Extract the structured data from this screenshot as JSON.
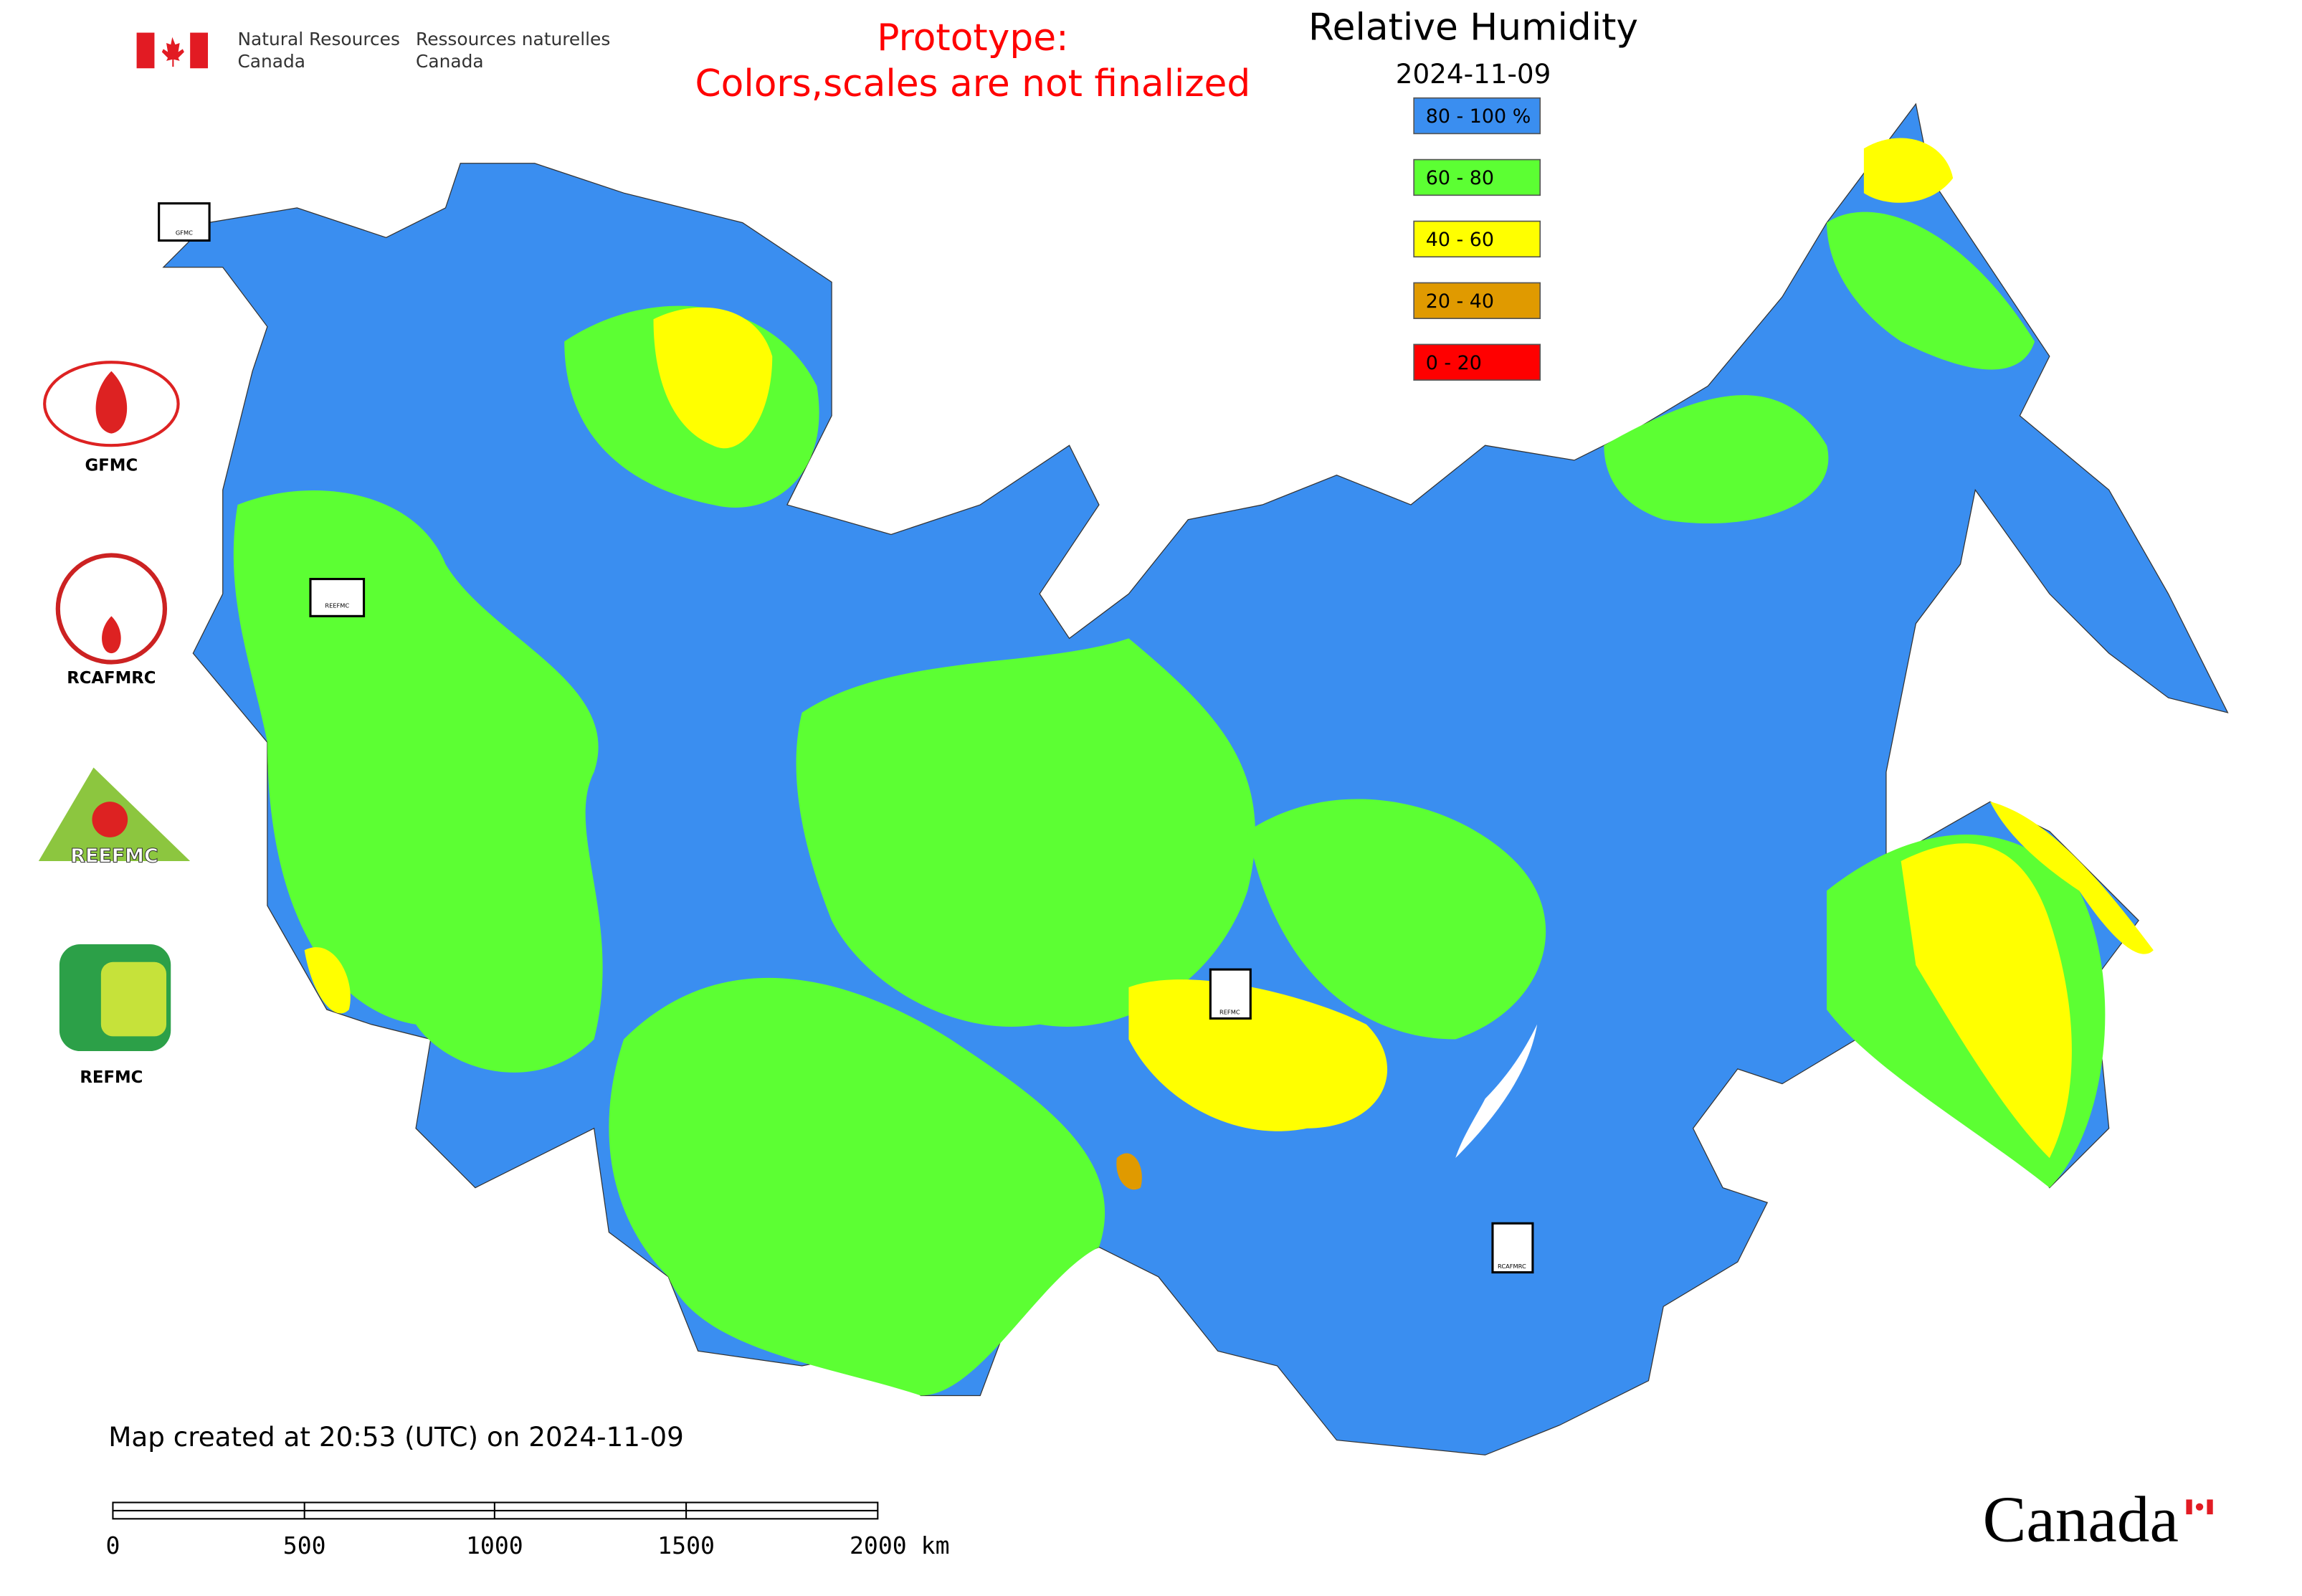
{
  "header": {
    "agency_en_line1": "Natural Resources",
    "agency_en_line2": "Canada",
    "agency_fr_line1": "Ressources naturelles",
    "agency_fr_line2": "Canada"
  },
  "notice": {
    "line1": "Prototype:",
    "line2": "Colors,scales are not finalized"
  },
  "legend": {
    "title": "Relative Humidity",
    "date": "2024-11-09",
    "items": [
      {
        "label": "80 - 100 %",
        "color": "#3a8ef0"
      },
      {
        "label": "60 - 80",
        "color": "#5cff33"
      },
      {
        "label": "40 - 60",
        "color": "#ffff00"
      },
      {
        "label": "20 - 40",
        "color": "#e09a00"
      },
      {
        "label": "0 - 20",
        "color": "#ff0000"
      }
    ]
  },
  "logos": [
    {
      "label": "GFMC"
    },
    {
      "label": "RCAFMRC"
    },
    {
      "label": "REEFMC"
    },
    {
      "label": "REFMC"
    }
  ],
  "map_markers": [
    {
      "label": "GFMC"
    },
    {
      "label": "REEFMC"
    },
    {
      "label": "REFMC"
    },
    {
      "label": "RCAFMRC"
    }
  ],
  "footer": {
    "created": "Map created at 20:53 (UTC) on 2024-11-09",
    "scale_labels": [
      "0",
      "500",
      "1000",
      "1500",
      "2000 km"
    ],
    "wordmark": "Canada"
  }
}
